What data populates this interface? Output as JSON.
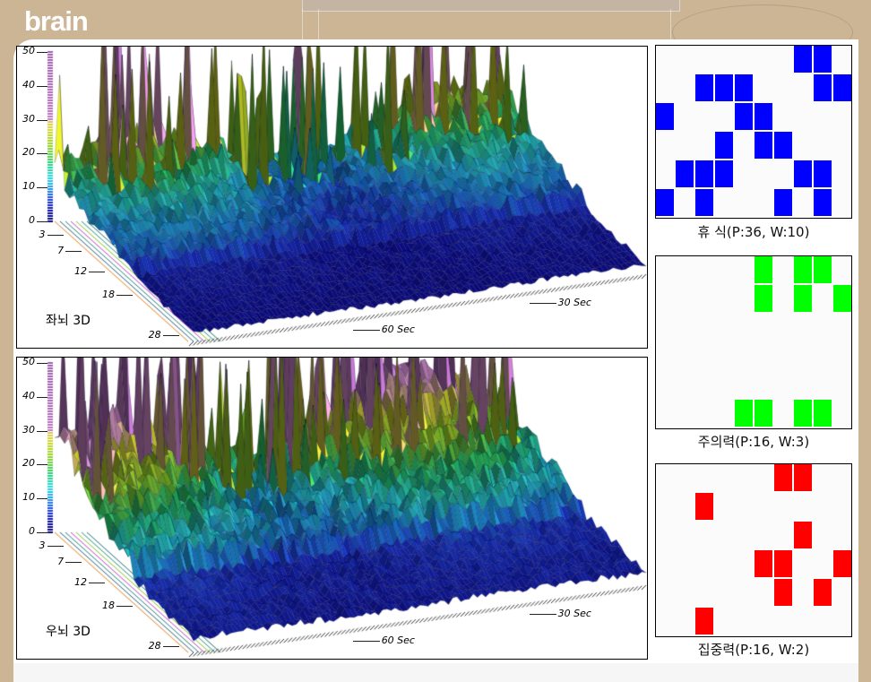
{
  "app": {
    "title": "brain"
  },
  "charts": [
    {
      "label": "좌뇌 3D",
      "y_ticks": [
        0,
        10,
        20,
        30,
        40,
        50
      ],
      "freq_ticks": [
        3,
        7,
        12,
        18,
        28
      ],
      "time_ticks": [
        {
          "t": 30,
          "label": "30 Sec"
        },
        {
          "t": 60,
          "label": "60 Sec"
        }
      ],
      "level": 1.0
    },
    {
      "label": "우뇌 3D",
      "y_ticks": [
        0,
        10,
        20,
        30,
        40,
        50
      ],
      "freq_ticks": [
        3,
        7,
        12,
        18,
        28
      ],
      "time_ticks": [
        {
          "t": 30,
          "label": "30 Sec"
        },
        {
          "t": 60,
          "label": "60 Sec"
        }
      ],
      "level": 1.45
    }
  ],
  "grids": [
    {
      "label": "휴  식(P:36, W:10)",
      "color": "#0000ff",
      "rows": [
        [
          7,
          8
        ],
        [
          2,
          3,
          4,
          8,
          9
        ],
        [
          0,
          4,
          5
        ],
        [
          3,
          5,
          6
        ],
        [
          1,
          2,
          3,
          7,
          8
        ],
        [
          0,
          2,
          6,
          8
        ]
      ]
    },
    {
      "label": "주의력(P:16, W:3)",
      "color": "#00ff00",
      "rows": [
        [
          5,
          7,
          8
        ],
        [
          5,
          7,
          9
        ],
        [],
        [],
        [],
        [
          4,
          5,
          7,
          8
        ]
      ]
    },
    {
      "label": "집중력(P:16, W:2)",
      "color": "#ff0000",
      "rows": [
        [
          6,
          7
        ],
        [
          2
        ],
        [
          7
        ],
        [
          5,
          6,
          9
        ],
        [
          6,
          8
        ],
        [
          2
        ]
      ]
    }
  ]
}
